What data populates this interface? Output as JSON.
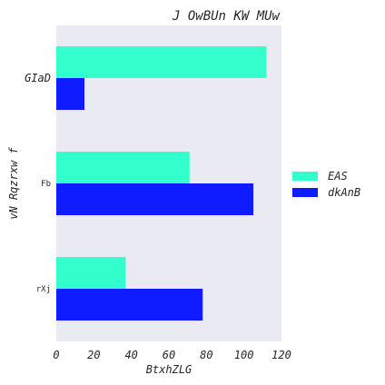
{
  "chart_data": {
    "type": "bar",
    "orientation": "horizontal",
    "title": "J OwBUn KW MUw",
    "xlabel": "BtxhZLG",
    "ylabel": "vN Rqzrxw f",
    "categories": [
      "GIaD",
      "Fb",
      "rXj"
    ],
    "series": [
      {
        "name": "EAS",
        "color": "#33ffcc",
        "values": [
          112,
          71,
          37
        ]
      },
      {
        "name": "dkAnB",
        "color": "#0f1cff",
        "values": [
          15,
          105,
          78
        ]
      }
    ],
    "xlim": [
      0,
      120
    ],
    "xticks": [
      0,
      20,
      40,
      60,
      80,
      100,
      120
    ],
    "grid": false,
    "background": "#eaeaf2",
    "legend_position": "right"
  }
}
